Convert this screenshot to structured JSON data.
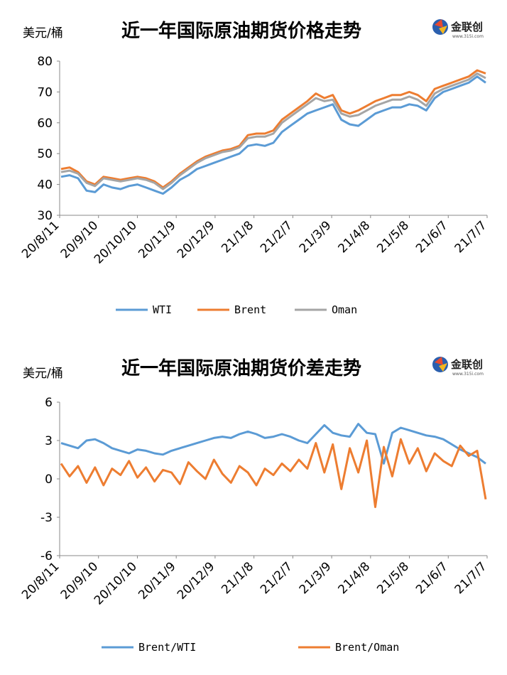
{
  "charts": [
    {
      "title": "近一年国际原油期货价格走势",
      "unit": "美元/桶",
      "logo": {
        "text": "金联创",
        "sub": "www.315i.com"
      },
      "legend": [
        "WTI",
        "Brent",
        "Oman"
      ]
    },
    {
      "title": "近一年国际原油期货价差走势",
      "unit": "美元/桶",
      "logo": {
        "text": "金联创",
        "sub": "www.315i.com"
      },
      "legend": [
        "Brent/WTI",
        "Brent/Oman"
      ]
    }
  ],
  "colors": {
    "WTI": "#5b9bd5",
    "Brent": "#ed7d31",
    "Oman": "#a5a5a5",
    "axis": "#888888",
    "text": "#000000"
  },
  "chart_data": [
    {
      "type": "line",
      "title": "近一年国际原油期货价格走势",
      "ylabel": "美元/桶",
      "ylim": [
        30,
        80
      ],
      "yticks": [
        30,
        40,
        50,
        60,
        70,
        80
      ],
      "x_tick_labels": [
        "20/8/11",
        "20/9/10",
        "20/10/10",
        "20/11/9",
        "20/12/9",
        "21/1/8",
        "21/2/7",
        "21/3/9",
        "21/4/8",
        "21/5/8",
        "21/6/7",
        "21/7/7"
      ],
      "legend_position": "bottom",
      "series": [
        {
          "name": "WTI",
          "values": [
            42.5,
            43,
            42,
            38,
            37.5,
            40,
            39,
            38.5,
            39.5,
            40,
            39,
            38,
            37,
            39,
            41.5,
            43,
            45,
            46,
            47,
            48,
            49,
            50,
            52.5,
            53,
            52.5,
            53.5,
            57,
            59,
            61,
            63,
            64,
            65,
            66,
            61,
            59.5,
            59,
            61,
            63,
            64,
            65,
            65,
            66,
            65.5,
            64,
            68,
            70,
            71,
            72,
            73,
            75,
            73
          ]
        },
        {
          "name": "Brent",
          "values": [
            45,
            45.5,
            44,
            41,
            40,
            42.5,
            42,
            41.5,
            42,
            42.5,
            42,
            41,
            39,
            41,
            43.5,
            45.5,
            47.5,
            49,
            50,
            51,
            51.5,
            52.5,
            56,
            56.5,
            56.5,
            57.5,
            61,
            63,
            65,
            67,
            69.5,
            68,
            69,
            64,
            63,
            64,
            65.5,
            67,
            68,
            69,
            69,
            70,
            69,
            67,
            71,
            72,
            73,
            74,
            75,
            77,
            76
          ]
        },
        {
          "name": "Oman",
          "values": [
            44,
            44.5,
            43.5,
            40.5,
            39.5,
            42,
            41.5,
            41,
            41.5,
            42,
            41.5,
            40.5,
            38.5,
            40.5,
            43,
            45,
            47,
            48.5,
            49.5,
            50.5,
            51,
            52,
            55,
            55.5,
            55.5,
            56.5,
            60,
            62,
            64,
            66,
            68,
            67,
            67.5,
            63,
            62,
            62.5,
            64,
            65.5,
            66.5,
            67.5,
            67.5,
            68.5,
            67.5,
            65.5,
            69.5,
            71,
            72,
            73,
            74,
            76,
            74.5
          ]
        }
      ]
    },
    {
      "type": "line",
      "title": "近一年国际原油期货价差走势",
      "ylabel": "美元/桶",
      "ylim": [
        -6,
        6
      ],
      "yticks": [
        -6,
        -3,
        0,
        3,
        6
      ],
      "x_tick_labels": [
        "20/8/11",
        "20/9/10",
        "20/10/10",
        "20/11/9",
        "20/12/9",
        "21/1/8",
        "21/2/7",
        "21/3/9",
        "21/4/8",
        "21/5/8",
        "21/6/7",
        "21/7/7"
      ],
      "legend_position": "bottom",
      "series": [
        {
          "name": "Brent/WTI",
          "values": [
            2.8,
            2.6,
            2.4,
            3.0,
            3.1,
            2.8,
            2.4,
            2.2,
            2.0,
            2.3,
            2.2,
            2.0,
            1.9,
            2.2,
            2.4,
            2.6,
            2.8,
            3.0,
            3.2,
            3.3,
            3.2,
            3.5,
            3.7,
            3.5,
            3.2,
            3.3,
            3.5,
            3.3,
            3.0,
            2.8,
            3.5,
            4.2,
            3.6,
            3.4,
            3.3,
            4.3,
            3.6,
            3.5,
            1.2,
            3.6,
            4.0,
            3.8,
            3.6,
            3.4,
            3.3,
            3.1,
            2.7,
            2.3,
            2.0,
            1.7,
            1.2
          ]
        },
        {
          "name": "Brent/Oman",
          "values": [
            1.2,
            0.2,
            1.0,
            -0.3,
            0.9,
            -0.5,
            0.8,
            0.3,
            1.4,
            0.1,
            0.9,
            -0.2,
            0.7,
            0.5,
            -0.4,
            1.3,
            0.6,
            0.0,
            1.5,
            0.4,
            -0.3,
            1.0,
            0.5,
            -0.5,
            0.8,
            0.3,
            1.2,
            0.6,
            1.5,
            0.8,
            2.8,
            0.5,
            2.7,
            -0.8,
            2.4,
            0.5,
            3.0,
            -2.2,
            2.5,
            0.2,
            3.1,
            1.2,
            2.4,
            0.6,
            2.0,
            1.4,
            1.0,
            2.6,
            1.8,
            2.2,
            -1.6
          ]
        }
      ]
    }
  ]
}
